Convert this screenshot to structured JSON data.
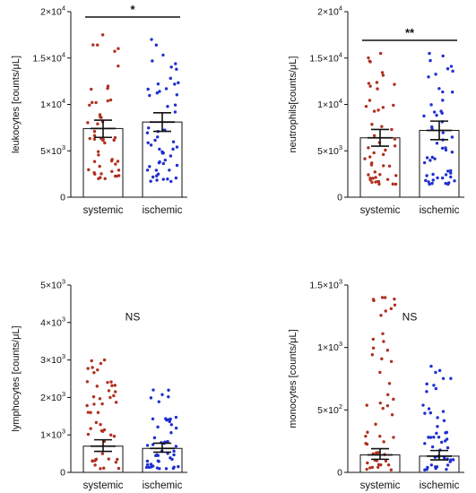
{
  "colors": {
    "systemic": "#b0301e",
    "ischemic": "#1f2fd0",
    "axis": "#111111",
    "bar": "#ffffff"
  },
  "chart_data": [
    {
      "type": "bar",
      "ylabel": "leukocytes [counts/μL]",
      "categories": [
        "systemic",
        "ischemic"
      ],
      "ylim": [
        0,
        20000
      ],
      "yticks": [
        {
          "v": 0,
          "label": "0",
          "exp": ""
        },
        {
          "v": 5000,
          "label": "5×10",
          "exp": "3"
        },
        {
          "v": 10000,
          "label": "1×10",
          "exp": "4"
        },
        {
          "v": 15000,
          "label": "1.5×10",
          "exp": "4"
        },
        {
          "v": 20000,
          "label": "2×10",
          "exp": "4"
        }
      ],
      "means": [
        7400,
        8100
      ],
      "ci": [
        [
          6450,
          8300
        ],
        [
          7100,
          9100
        ]
      ],
      "significance": "*",
      "n": [
        50,
        55
      ],
      "point_ranges": [
        [
          2000,
          17500
        ],
        [
          1700,
          17000
        ]
      ],
      "grid": false
    },
    {
      "type": "bar",
      "ylabel": "neutrophils[counts/μL]",
      "categories": [
        "systemic",
        "ischemic"
      ],
      "ylim": [
        0,
        20000
      ],
      "yticks": [
        {
          "v": 0,
          "label": "0",
          "exp": ""
        },
        {
          "v": 5000,
          "label": "5×10",
          "exp": "3"
        },
        {
          "v": 10000,
          "label": "1×10",
          "exp": "4"
        },
        {
          "v": 15000,
          "label": "1.5×10",
          "exp": "4"
        },
        {
          "v": 20000,
          "label": "2×10",
          "exp": "4"
        }
      ],
      "means": [
        6400,
        7200
      ],
      "ci": [
        [
          5500,
          7300
        ],
        [
          6200,
          8200
        ]
      ],
      "significance": "**",
      "n": [
        50,
        52
      ],
      "point_ranges": [
        [
          1400,
          15500
        ],
        [
          1400,
          15500
        ]
      ],
      "grid": false
    },
    {
      "type": "bar",
      "ylabel": "lymphocytes [counts/μL]",
      "categories": [
        "systemic",
        "ischemic"
      ],
      "ylim": [
        0,
        5000
      ],
      "yticks": [
        {
          "v": 0,
          "label": "0",
          "exp": ""
        },
        {
          "v": 1000,
          "label": "1×10",
          "exp": "3"
        },
        {
          "v": 2000,
          "label": "2×10",
          "exp": "3"
        },
        {
          "v": 3000,
          "label": "3×10",
          "exp": "3"
        },
        {
          "v": 4000,
          "label": "4×10",
          "exp": "3"
        },
        {
          "v": 5000,
          "label": "5×10",
          "exp": "3"
        }
      ],
      "means": [
        700,
        640
      ],
      "ci": [
        [
          560,
          870
        ],
        [
          540,
          780
        ]
      ],
      "significance": "NS",
      "n": [
        48,
        50
      ],
      "point_ranges": [
        [
          100,
          3000
        ],
        [
          100,
          2200
        ]
      ],
      "grid": false
    },
    {
      "type": "bar",
      "ylabel": "monocytes [counts/μL]",
      "categories": [
        "systemic",
        "ischemic"
      ],
      "ylim": [
        0,
        1500
      ],
      "yticks": [
        {
          "v": 0,
          "label": "0",
          "exp": ""
        },
        {
          "v": 500,
          "label": "5×10",
          "exp": "2"
        },
        {
          "v": 1000,
          "label": "1×10",
          "exp": "3"
        },
        {
          "v": 1500,
          "label": "1.5×10",
          "exp": "3"
        }
      ],
      "means": [
        140,
        130
      ],
      "ci": [
        [
          105,
          190
        ],
        [
          100,
          175
        ]
      ],
      "significance": "NS",
      "n": [
        50,
        48
      ],
      "point_ranges": [
        [
          20,
          1400
        ],
        [
          20,
          850
        ]
      ],
      "grid": false
    }
  ]
}
